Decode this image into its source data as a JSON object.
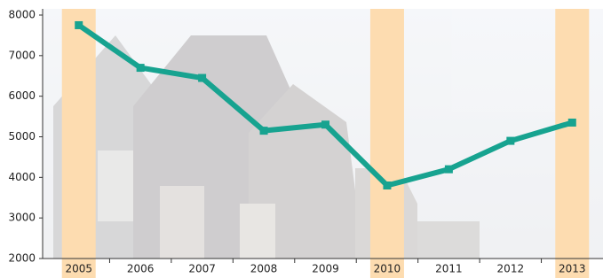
{
  "chart_data": {
    "type": "line",
    "categories": [
      "2005",
      "2006",
      "2007",
      "2008",
      "2009",
      "2010",
      "2011",
      "2012",
      "2013"
    ],
    "series": [
      {
        "color": "#17a390",
        "values": [
          7750,
          6700,
          6450,
          5150,
          5300,
          3800,
          4200,
          4900,
          5350
        ]
      }
    ],
    "highlight_indices": [
      0,
      5,
      8
    ],
    "highlight_color": "#fddcb0",
    "ylim": [
      2000,
      8000
    ],
    "yticks": [
      2000,
      3000,
      4000,
      5000,
      6000,
      7000,
      8000
    ]
  }
}
